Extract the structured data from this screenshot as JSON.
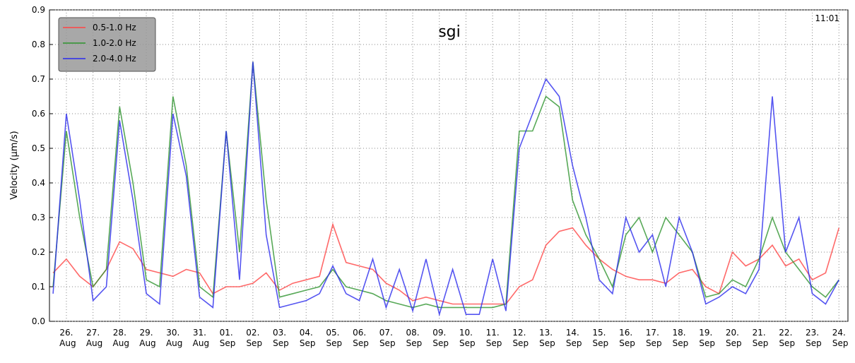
{
  "chart_data": {
    "type": "line",
    "title": "sgi",
    "annotation": "11:01",
    "y_label": "Velocity (μm/s)",
    "categories": [
      null,
      "26. Aug",
      null,
      "27. Aug",
      null,
      "28. Aug",
      null,
      "29. Aug",
      null,
      "30. Aug",
      null,
      "31. Aug",
      null,
      "01. Sep",
      null,
      "02. Sep",
      null,
      "03. Sep",
      null,
      "04. Sep",
      null,
      "05. Sep",
      null,
      "06. Sep",
      null,
      "07. Sep",
      null,
      "08. Sep",
      null,
      "09. Sep",
      null,
      "10. Sep",
      null,
      "11. Sep",
      null,
      "12. Sep",
      null,
      "13. Sep",
      null,
      "14. Sep",
      null,
      "15. Sep",
      null,
      "16. Sep",
      null,
      "17. Sep",
      null,
      "18. Sep",
      null,
      "19. Sep",
      null,
      "20. Sep",
      null,
      "21. Sep",
      null,
      "22. Sep",
      null,
      "23. Sep",
      null,
      "24. Sep"
    ],
    "series": [
      {
        "name": "0.5-1.0 Hz",
        "color": "#ff4444",
        "values": [
          0.14,
          0.18,
          0.13,
          0.1,
          0.15,
          0.23,
          0.21,
          0.15,
          0.14,
          0.13,
          0.15,
          0.14,
          0.08,
          0.1,
          0.1,
          0.11,
          0.14,
          0.09,
          0.11,
          0.12,
          0.13,
          0.28,
          0.17,
          0.16,
          0.15,
          0.11,
          0.09,
          0.06,
          0.07,
          0.06,
          0.05,
          0.05,
          0.05,
          0.05,
          0.05,
          0.1,
          0.12,
          0.22,
          0.26,
          0.27,
          0.22,
          0.18,
          0.15,
          0.13,
          0.12,
          0.12,
          0.11,
          0.14,
          0.15,
          0.1,
          0.08,
          0.2,
          0.16,
          0.18,
          0.22,
          0.16,
          0.18,
          0.12,
          0.14,
          0.27
        ]
      },
      {
        "name": "1.0-2.0 Hz",
        "color": "#2e942e",
        "values": [
          0.1,
          0.55,
          0.3,
          0.1,
          0.15,
          0.62,
          0.4,
          0.12,
          0.1,
          0.65,
          0.45,
          0.1,
          0.07,
          0.55,
          0.2,
          0.75,
          0.35,
          0.07,
          0.08,
          0.09,
          0.1,
          0.15,
          0.1,
          0.09,
          0.08,
          0.06,
          0.05,
          0.04,
          0.05,
          0.04,
          0.04,
          0.04,
          0.04,
          0.04,
          0.05,
          0.55,
          0.55,
          0.65,
          0.62,
          0.35,
          0.25,
          0.18,
          0.1,
          0.25,
          0.3,
          0.2,
          0.3,
          0.25,
          0.2,
          0.07,
          0.08,
          0.12,
          0.1,
          0.18,
          0.3,
          0.2,
          0.15,
          0.1,
          0.07,
          0.12
        ]
      },
      {
        "name": "2.0-4.0 Hz",
        "color": "#2a2aee",
        "values": [
          0.08,
          0.6,
          0.35,
          0.06,
          0.1,
          0.58,
          0.35,
          0.08,
          0.05,
          0.6,
          0.42,
          0.07,
          0.04,
          0.55,
          0.12,
          0.75,
          0.25,
          0.04,
          0.05,
          0.06,
          0.08,
          0.16,
          0.08,
          0.06,
          0.18,
          0.04,
          0.15,
          0.03,
          0.18,
          0.02,
          0.15,
          0.02,
          0.02,
          0.18,
          0.03,
          0.5,
          0.6,
          0.7,
          0.65,
          0.45,
          0.3,
          0.12,
          0.08,
          0.3,
          0.2,
          0.25,
          0.1,
          0.3,
          0.2,
          0.05,
          0.07,
          0.1,
          0.08,
          0.15,
          0.65,
          0.2,
          0.3,
          0.08,
          0.05,
          0.12
        ]
      }
    ],
    "ylim": [
      0,
      0.9
    ],
    "yticks": [
      {
        "value": 0,
        "label": "0.0"
      },
      {
        "value": 0.1,
        "label": "0.1"
      },
      {
        "value": 0.2,
        "label": "0.2"
      },
      {
        "value": 0.3,
        "label": "0.3"
      },
      {
        "value": 0.4,
        "label": "0.4"
      },
      {
        "value": 0.5,
        "label": "0.5"
      },
      {
        "value": 0.6,
        "label": "0.6"
      },
      {
        "value": 0.7,
        "label": "0.7"
      },
      {
        "value": 0.8,
        "label": "0.8"
      },
      {
        "value": 0.9,
        "label": "0.9"
      }
    ],
    "grid": true,
    "legend": "upper left"
  }
}
